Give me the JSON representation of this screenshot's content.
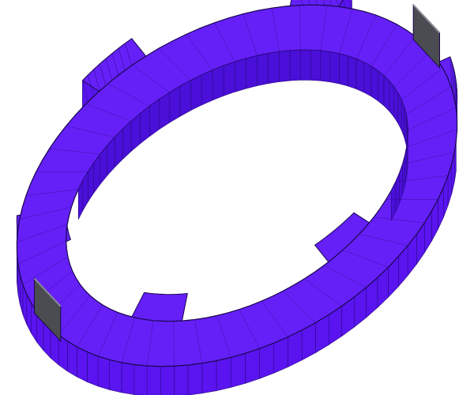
{
  "scene": {
    "background_color": "#ffffff",
    "model": {
      "shape": "ring-with-tabs",
      "face_color": "#5a14f0",
      "inner_face_color": "#4a0fd8",
      "top_face_color": "#6520f7",
      "mesh_line_color": "#2a0a86",
      "outline_color": "#1a0650",
      "clip_color": "#4b4b52",
      "clip_highlight_color": "#8a8a94",
      "tab_count": 6,
      "clip_count": 2
    }
  }
}
